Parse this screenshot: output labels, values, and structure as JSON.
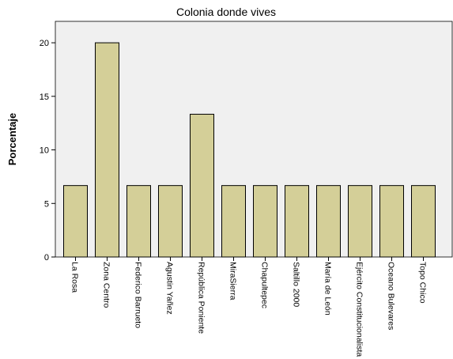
{
  "chart_data": {
    "type": "bar",
    "title": "Colonia donde vives",
    "xlabel": "",
    "ylabel": "Porcentaje",
    "ylim": [
      0,
      22
    ],
    "yticks": [
      0,
      5,
      10,
      15,
      20
    ],
    "grid": false,
    "legend": "none",
    "categories": [
      "La Rosa",
      "Zona Centro",
      "Federico Barrueto",
      "Agustin Yañez",
      "República Poniente",
      "MiraSierra",
      "Chapultepec",
      "Saltillo 2000",
      "María de León",
      "Ejército Constitucionalista",
      "Oceano Bulevares",
      "Topo Chico"
    ],
    "values": [
      6.67,
      20,
      6.67,
      6.67,
      13.33,
      6.67,
      6.67,
      6.67,
      6.67,
      6.67,
      6.67,
      6.67
    ],
    "colors": {
      "bar_fill": "#d4cf98",
      "bar_stroke": "#000000",
      "plot_background": "#f0f0f0",
      "page_background": "#ffffff"
    }
  }
}
